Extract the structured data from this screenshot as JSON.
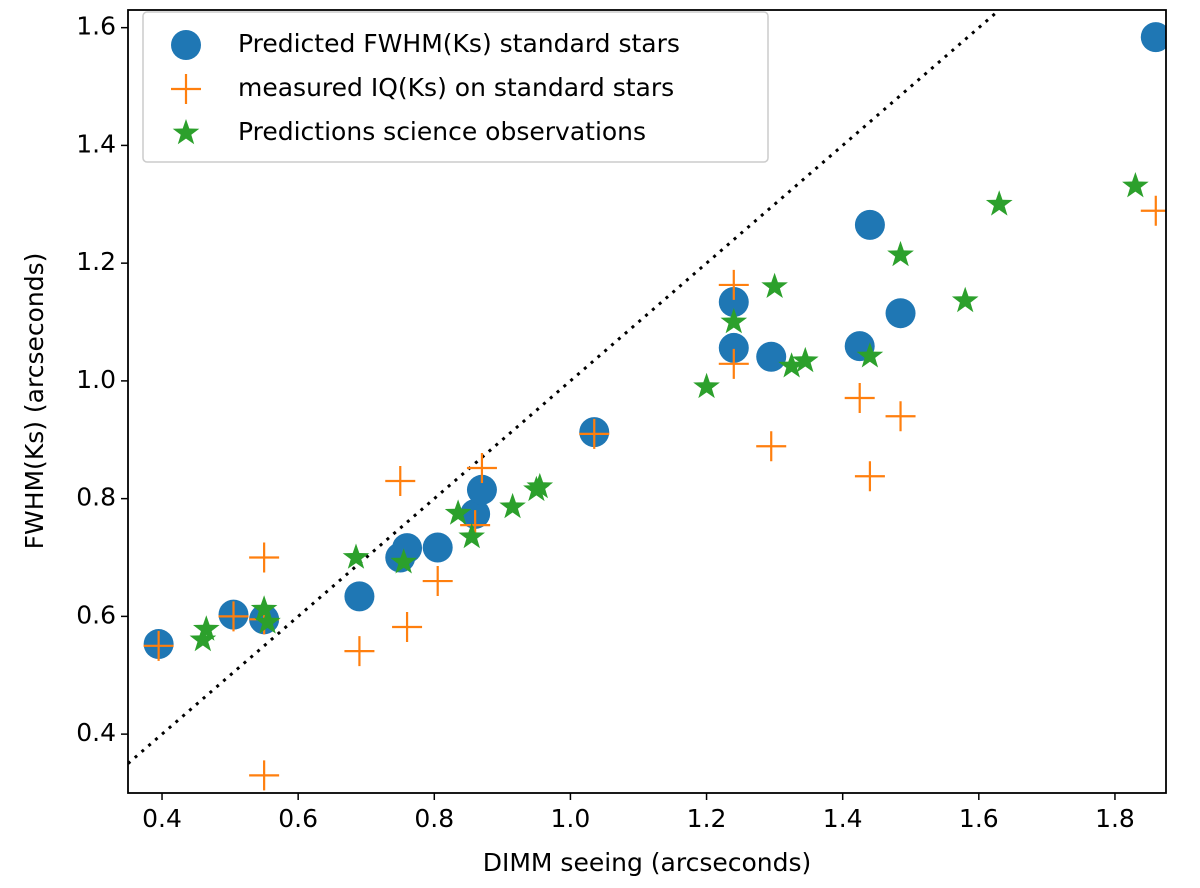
{
  "chart_data": {
    "type": "scatter",
    "x_label": "DIMM seeing (arcseconds)",
    "y_label": "FWHM(Ks) (arcseconds)",
    "xlim": [
      0.35,
      1.875
    ],
    "ylim": [
      0.3,
      1.63
    ],
    "xticks": [
      0.4,
      0.6,
      0.8,
      {
        "value": 1,
        "label": "1.0"
      },
      1.2,
      1.4,
      1.6,
      1.8
    ],
    "yticks": [
      0.4,
      0.6,
      0.8,
      {
        "value": 1,
        "label": "1.0"
      },
      1.2,
      1.4,
      1.6
    ],
    "legend": "upper left",
    "reference_line": {
      "x": [
        0.35,
        1.63
      ],
      "y": [
        0.35,
        1.63
      ],
      "style": "dotted",
      "color": "#000000"
    },
    "series": [
      {
        "name": "Predicted FWHM(Ks) standard stars",
        "color": "#1f77b4",
        "marker": "circle",
        "x": [
          0.395,
          0.505,
          0.55,
          0.69,
          0.75,
          0.76,
          0.805,
          0.86,
          0.87,
          1.035,
          1.24,
          1.24,
          1.295,
          1.425,
          1.44,
          1.485,
          1.86
        ],
        "values": [
          0.553,
          0.603,
          0.595,
          0.634,
          0.7,
          0.716,
          0.717,
          0.774,
          0.815,
          0.913,
          1.134,
          1.056,
          1.041,
          1.059,
          1.265,
          1.115,
          1.584
        ]
      },
      {
        "name": "measured IQ(Ks) on standard stars",
        "color": "#ff7f0e",
        "marker": "plus",
        "x": [
          0.395,
          0.505,
          0.55,
          0.55,
          0.55,
          0.69,
          0.75,
          0.76,
          0.805,
          0.86,
          0.87,
          1.035,
          1.24,
          1.24,
          1.295,
          1.425,
          1.44,
          1.485,
          1.86
        ],
        "values": [
          0.55,
          0.6,
          0.7,
          0.33,
          0.595,
          0.541,
          0.83,
          0.582,
          0.66,
          0.755,
          0.852,
          0.91,
          1.163,
          1.029,
          0.889,
          0.971,
          0.838,
          0.94,
          1.289
        ]
      },
      {
        "name": "Predictions science observations",
        "color": "#2ca02c",
        "marker": "star",
        "x": [
          0.46,
          0.465,
          0.55,
          0.555,
          0.685,
          0.755,
          0.835,
          0.855,
          0.915,
          0.95,
          0.955,
          1.2,
          1.24,
          1.3,
          1.325,
          1.345,
          1.44,
          1.485,
          1.58,
          1.63,
          1.83
        ],
        "values": [
          0.56,
          0.578,
          0.612,
          0.59,
          0.7,
          0.692,
          0.775,
          0.735,
          0.786,
          0.815,
          0.82,
          0.99,
          1.1,
          1.16,
          1.025,
          1.034,
          1.042,
          1.214,
          1.136,
          1.3,
          1.331
        ]
      }
    ]
  }
}
